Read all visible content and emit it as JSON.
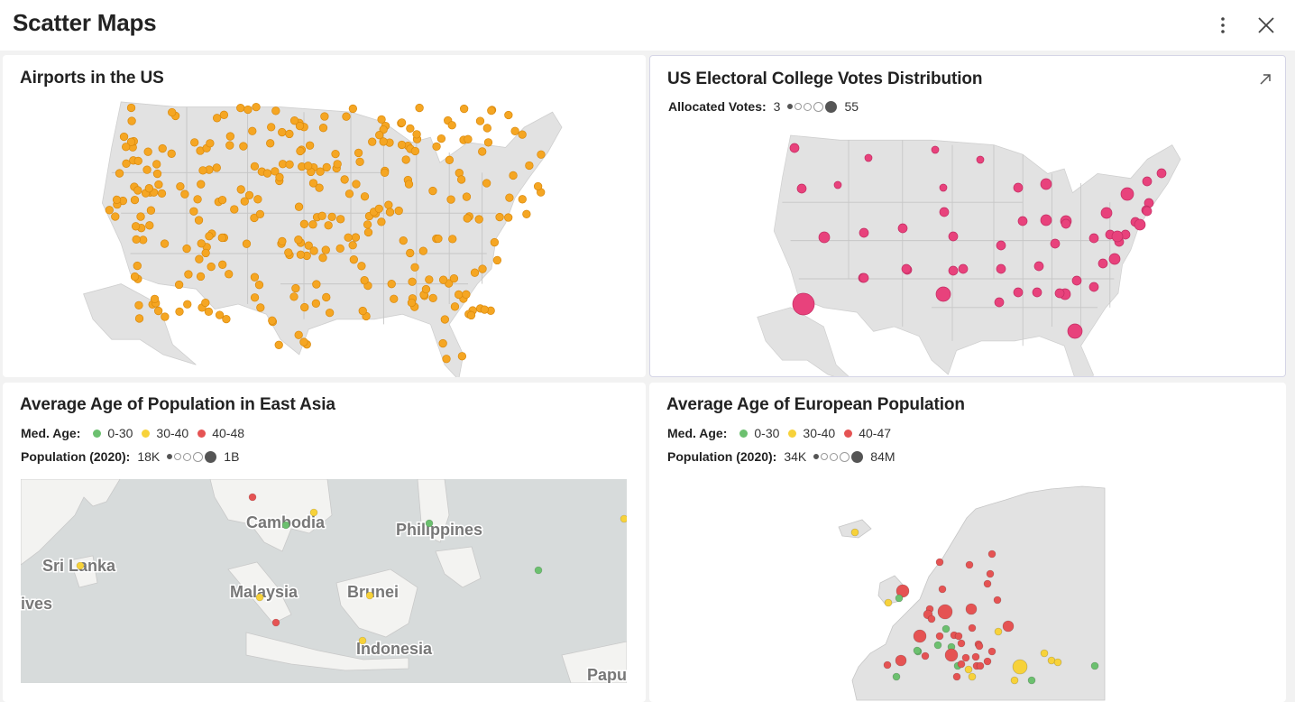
{
  "header": {
    "title": "Scatter Maps"
  },
  "colors": {
    "airport": "#f5a623",
    "electoral": "#e8427c",
    "age_0_30": "#6cc06f",
    "age_30_40": "#f7d23a",
    "age_40_plus": "#e55353",
    "land": "#e2e2e2",
    "border": "#ffffff"
  },
  "tiles": {
    "airports": {
      "title": "Airports in the US"
    },
    "electoral": {
      "title": "US Electoral College Votes Distribution",
      "legend": {
        "label": "Allocated Votes:",
        "min": "3",
        "max": "55"
      }
    },
    "east_asia": {
      "title": "Average Age of Population in East Asia",
      "legend_age": {
        "label": "Med. Age:",
        "items": [
          "0-30",
          "30-40",
          "40-48"
        ]
      },
      "legend_pop": {
        "label": "Population (2020):",
        "min": "18K",
        "max": "1B"
      },
      "map_labels": [
        "Cambodia",
        "Philippines",
        "Sri Lanka",
        "Malaysia",
        "Brunei",
        "ives",
        "Indonesia",
        "Papu"
      ]
    },
    "europe": {
      "title": "Average Age of European Population",
      "legend_age": {
        "label": "Med. Age:",
        "items": [
          "0-30",
          "30-40",
          "40-47"
        ]
      },
      "legend_pop": {
        "label": "Population (2020):",
        "min": "34K",
        "max": "84M"
      }
    }
  }
}
